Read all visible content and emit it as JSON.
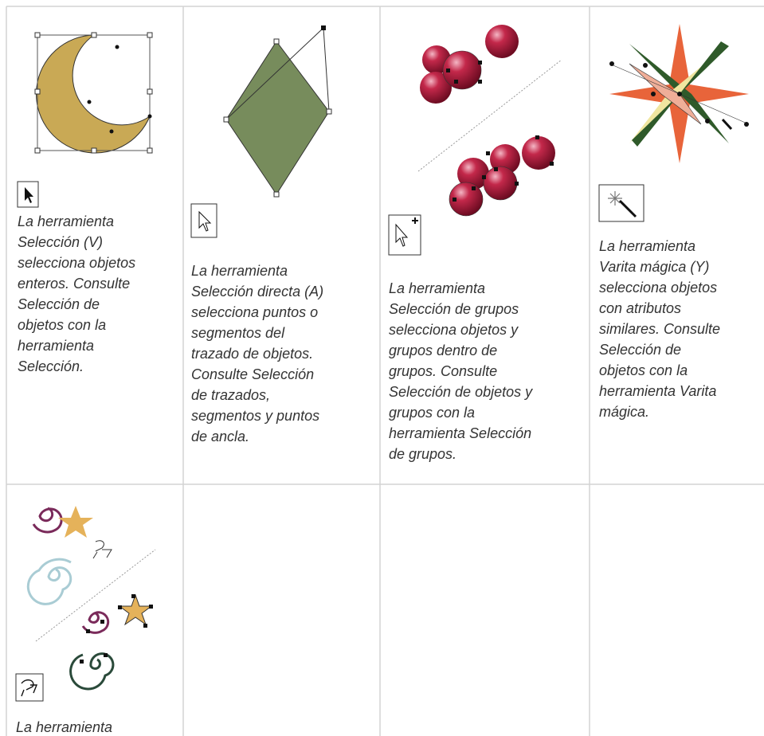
{
  "table": {
    "rows": [
      [
        {
          "lines": [
            "La herramienta",
            "Selección (V)",
            "selecciona objetos",
            "enteros. Consulte",
            "Selección de",
            "objetos con la",
            "herramienta",
            "Selección."
          ]
        },
        {
          "lines": [
            "La herramienta",
            "Selección directa (A)",
            "selecciona puntos o",
            "segmentos del",
            "trazado de objetos.",
            "Consulte Selección",
            "de trazados,",
            "segmentos y puntos",
            "de ancla."
          ]
        },
        {
          "lines": [
            "La herramienta",
            "Selección de grupos",
            "selecciona objetos y",
            "grupos dentro de",
            "grupos. Consulte",
            "Selección de objetos y",
            "grupos con la",
            "herramienta Selección",
            "de grupos."
          ]
        },
        {
          "lines": [
            "La herramienta",
            "Varita mágica (Y)",
            "selecciona objetos",
            "con atributos",
            "similares. Consulte",
            "Selección de",
            "objetos con la",
            "herramienta Varita",
            "mágica."
          ]
        }
      ],
      [
        {
          "lines": [
            "La herramienta"
          ]
        }
      ]
    ]
  }
}
